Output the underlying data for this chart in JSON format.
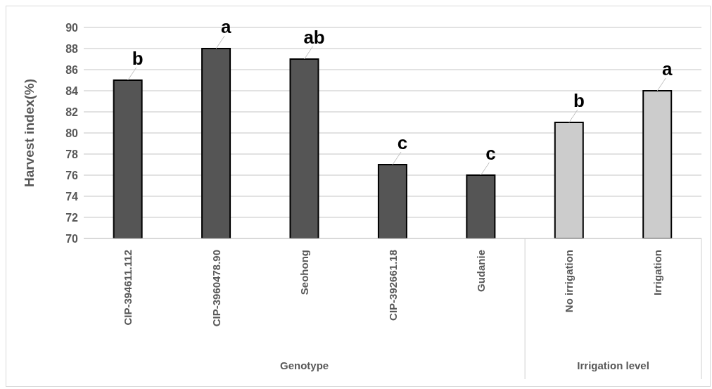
{
  "chart_data": {
    "type": "bar",
    "ylabel": "Harvest index(%)",
    "categories": [
      "CIP-394611.112",
      "CIP-3960478.90",
      "Seohong",
      "CIP-392661.18",
      "Gudanie",
      "No irrigation",
      "Irrigation"
    ],
    "values": [
      85,
      88,
      87,
      77,
      76,
      81,
      84
    ],
    "colors": [
      "#555555",
      "#555555",
      "#555555",
      "#555555",
      "#555555",
      "#cccccc",
      "#cccccc"
    ],
    "ylim": [
      70,
      90
    ],
    "yticks": [
      70,
      72,
      74,
      76,
      78,
      80,
      82,
      84,
      86,
      88,
      90
    ],
    "grid": "y",
    "legend": false,
    "annotations": [
      {
        "text": "b",
        "x": "CIP-394611.112",
        "y": 85
      },
      {
        "text": "a",
        "x": "CIP-3960478.90",
        "y": 88
      },
      {
        "text": "ab",
        "x": "Seohong",
        "y": 87
      },
      {
        "text": "c",
        "x": "CIP-392661.18",
        "y": 77
      },
      {
        "text": "c",
        "x": "Gudanie",
        "y": 76
      },
      {
        "text": "b",
        "x": "No irrigation",
        "y": 81
      },
      {
        "text": "a",
        "x": "Irrigation",
        "y": 84
      },
      "Genotype",
      "Irrigation level"
    ]
  }
}
